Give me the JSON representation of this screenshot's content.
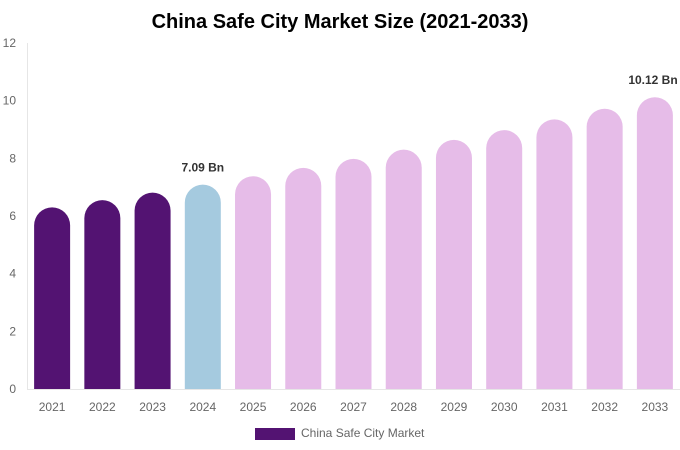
{
  "chart_data": {
    "type": "bar",
    "title": "China Safe City Market Size (2021-2033)",
    "xlabel": "",
    "ylabel": "",
    "ylim": [
      0,
      12
    ],
    "yticks": [
      0,
      2,
      4,
      6,
      8,
      10,
      12
    ],
    "categories": [
      "2021",
      "2022",
      "2023",
      "2024",
      "2025",
      "2026",
      "2027",
      "2028",
      "2029",
      "2030",
      "2031",
      "2032",
      "2033"
    ],
    "series": [
      {
        "name": "China Safe City Market",
        "values": [
          6.3,
          6.55,
          6.81,
          7.09,
          7.38,
          7.67,
          7.98,
          8.3,
          8.64,
          8.98,
          9.35,
          9.72,
          10.12
        ]
      }
    ],
    "bar_colors": [
      "#531372",
      "#531372",
      "#531372",
      "#a5cadf",
      "#e6bce8",
      "#e6bce8",
      "#e6bce8",
      "#e6bce8",
      "#e6bce8",
      "#e6bce8",
      "#e6bce8",
      "#e6bce8",
      "#e6bce8"
    ],
    "data_labels": [
      {
        "category": "2024",
        "text": "7.09 Bn"
      },
      {
        "category": "2033",
        "text": "10.12 Bn"
      }
    ],
    "legend": {
      "position": "bottom",
      "label": "China Safe City Market",
      "color": "#531372"
    },
    "grid": false
  }
}
